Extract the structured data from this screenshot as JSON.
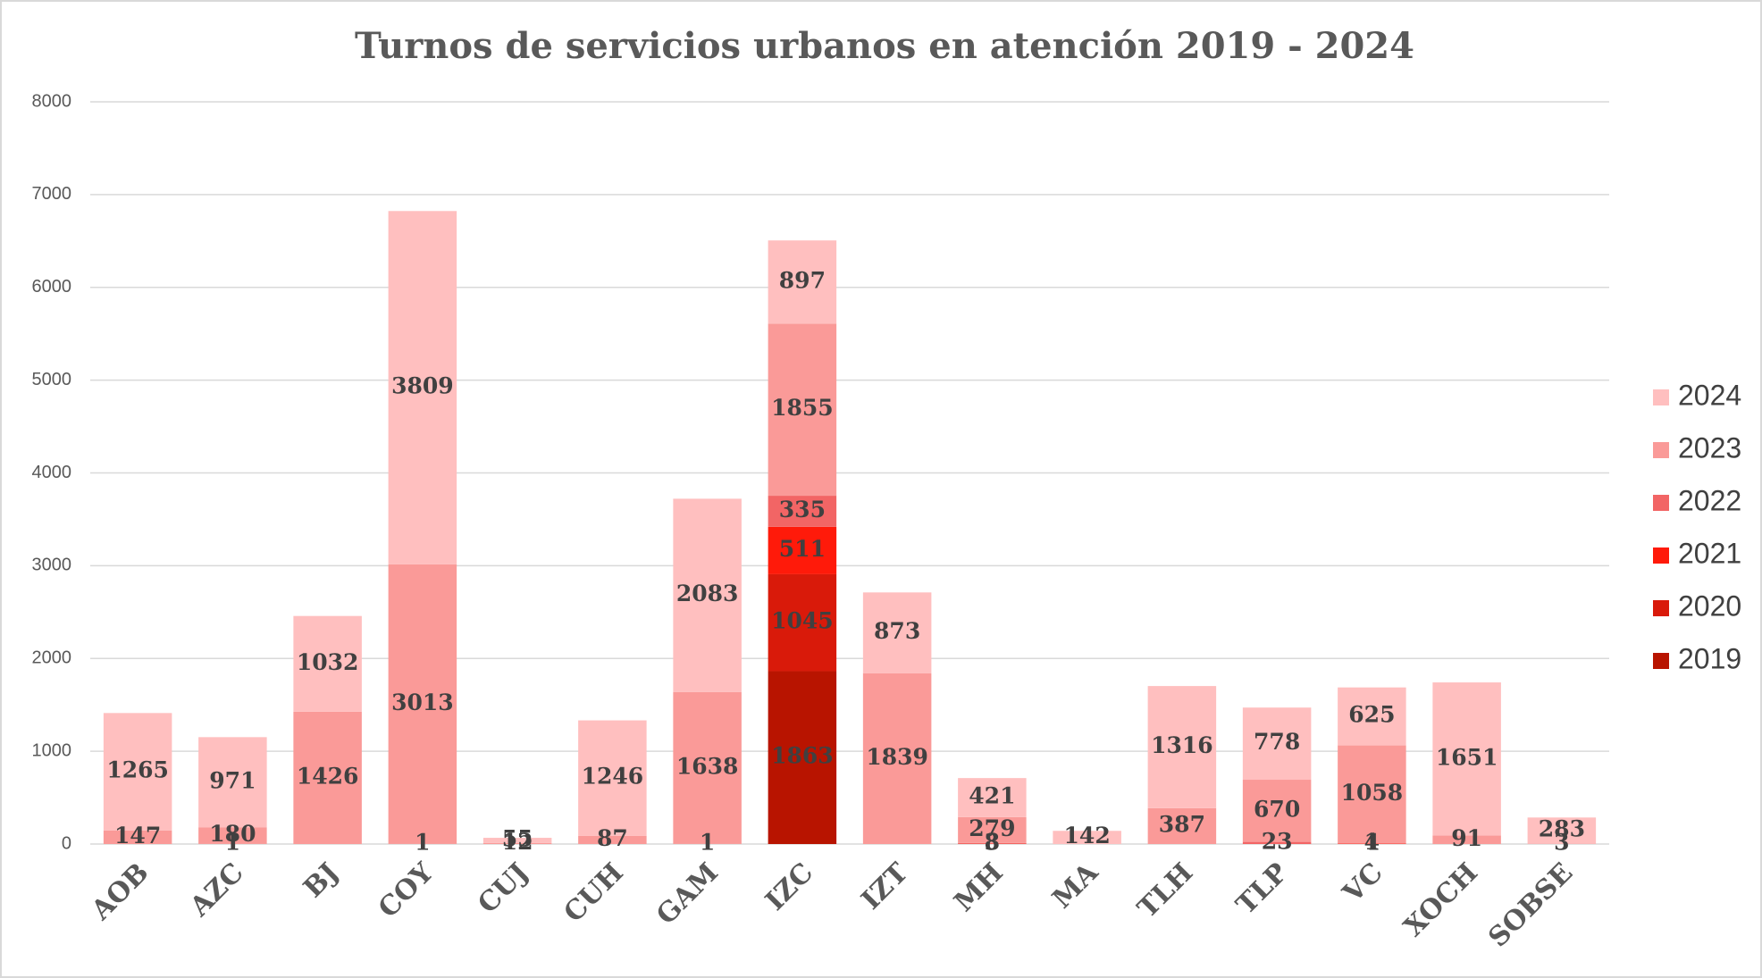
{
  "chart_data": {
    "type": "stacked_bar",
    "title": "Turnos de servicios urbanos en atención 2019 - 2024",
    "categories": [
      "AOB",
      "AZC",
      "BJ",
      "COY",
      "CUJ",
      "CUH",
      "GAM",
      "IZC",
      "IZT",
      "MH",
      "MA",
      "TLH",
      "TLP",
      "VC",
      "XOCH",
      "SOBSE"
    ],
    "series": [
      {
        "name": "2019",
        "color": "#b81400",
        "values": [
          null,
          null,
          null,
          null,
          null,
          null,
          null,
          1863,
          null,
          null,
          null,
          null,
          null,
          null,
          null,
          null
        ]
      },
      {
        "name": "2020",
        "color": "#d91a0a",
        "values": [
          null,
          null,
          null,
          null,
          null,
          null,
          null,
          1045,
          null,
          null,
          null,
          null,
          null,
          null,
          null,
          null
        ]
      },
      {
        "name": "2021",
        "color": "#ff1a0a",
        "values": [
          null,
          null,
          null,
          null,
          null,
          null,
          null,
          511,
          null,
          3,
          null,
          null,
          null,
          4,
          null,
          null
        ]
      },
      {
        "name": "2022",
        "color": "#f26565",
        "values": [
          null,
          1,
          null,
          1,
          null,
          null,
          1,
          335,
          null,
          8,
          null,
          null,
          23,
          1,
          null,
          null
        ]
      },
      {
        "name": "2023",
        "color": "#fa9a98",
        "values": [
          147,
          180,
          1426,
          3013,
          12,
          87,
          1638,
          1855,
          1839,
          279,
          null,
          387,
          670,
          1058,
          91,
          3
        ]
      },
      {
        "name": "2024",
        "color": "#ffbfbf",
        "values": [
          1265,
          971,
          1032,
          3809,
          55,
          1246,
          2083,
          897,
          873,
          421,
          142,
          1316,
          778,
          625,
          1651,
          283
        ]
      }
    ],
    "ylim": [
      0,
      8000
    ],
    "yticks": [
      0,
      1000,
      2000,
      3000,
      4000,
      5000,
      6000,
      7000,
      8000
    ],
    "grid": true,
    "legend": "right"
  }
}
